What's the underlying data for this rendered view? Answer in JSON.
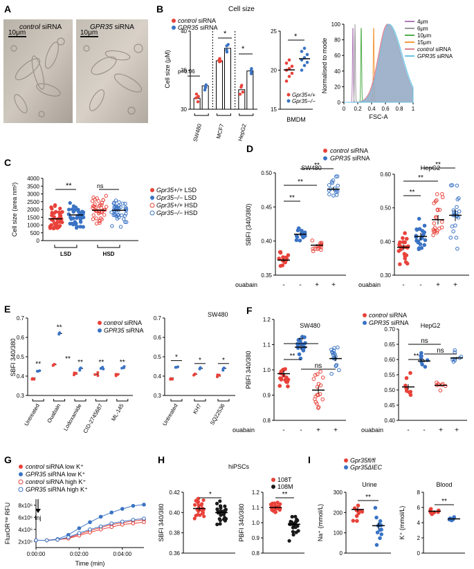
{
  "figure": {
    "panel_labels": [
      "A",
      "B",
      "C",
      "D",
      "E",
      "F",
      "G",
      "H",
      "I"
    ],
    "colors": {
      "red": "#e8423a",
      "blue": "#3a73c4",
      "pink": "#d98090",
      "cyan": "#6cc4e6",
      "purple": "#b07ab8",
      "green": "#4fae4a",
      "orange": "#f39a3c",
      "gray": "#999999",
      "black": "#1a1a1a"
    }
  },
  "A": {
    "image_labels": [
      {
        "prefix": "",
        "italic": "control",
        "suffix": " siRNA"
      },
      {
        "prefix": "",
        "italic": "GPR35",
        "suffix": " siRNA"
      }
    ],
    "scale_bars": [
      "10μm",
      "10μm"
    ]
  },
  "B": {
    "title": "Cell size",
    "legend": [
      {
        "italic": "control",
        "suffix": " siRNA",
        "color": "red"
      },
      {
        "italic": "GPR35",
        "suffix": " siRNA",
        "color": "blue"
      }
    ],
    "pval": "p=0.06",
    "sig": [
      "*",
      "*",
      "*"
    ],
    "bmdm_legend": [
      "Gpr35+/+",
      "Gpr35−/−"
    ],
    "flow_legend": [
      {
        "label": "4μm",
        "color": "purple"
      },
      {
        "label": "6μm",
        "color": "gray"
      },
      {
        "label": "10μm",
        "color": "green"
      },
      {
        "label": "15μm",
        "color": "orange"
      },
      {
        "italic": "control",
        "suffix": " siRNA",
        "color": "pink"
      },
      {
        "italic": "GPR35",
        "suffix": " siRNA",
        "color": "cyan"
      }
    ]
  },
  "C": {
    "sig": [
      "**",
      "ns"
    ],
    "legend": [
      {
        "gene": "Gpr35+/+",
        "diet": " LSD",
        "style": "red-filled"
      },
      {
        "gene": "Gpr35−/−",
        "diet": " LSD",
        "style": "blue-filled"
      },
      {
        "gene": "Gpr35+/+",
        "diet": " HSD",
        "style": "red-open"
      },
      {
        "gene": "Gpr35−/−",
        "diet": " HSD",
        "style": "blue-open"
      }
    ]
  },
  "D": {
    "legend": [
      {
        "italic": "control",
        "suffix": " siRNA"
      },
      {
        "italic": "GPR35",
        "suffix": " siRNA"
      }
    ],
    "row_label": "ouabain",
    "treatment_marks": [
      "-",
      "-",
      "+",
      "+"
    ],
    "sig": [
      "**",
      "**",
      "**"
    ]
  },
  "E": {
    "title": "SW480",
    "legend": [
      {
        "italic": "control",
        "suffix": " siRNA"
      },
      {
        "italic": "GPR35",
        "suffix": " siRNA"
      }
    ],
    "sig_left": [
      "**",
      "**",
      "**",
      "**",
      "**",
      "**"
    ],
    "sig_right": [
      "*",
      "*",
      "*"
    ]
  },
  "F": {
    "legend": [
      {
        "italic": "control",
        "suffix": " siRNA"
      },
      {
        "italic": "GPR35",
        "suffix": " siRNA"
      }
    ],
    "row_label": "ouabain",
    "treatment_marks": [
      "-",
      "-",
      "+",
      "+"
    ],
    "sig_left": [
      "**",
      "**",
      "ns"
    ],
    "sig_right": [
      "**",
      "ns",
      "ns"
    ]
  },
  "G": {
    "legend": [
      {
        "italic": "control",
        "suffix": " siRNA low K⁺"
      },
      {
        "italic": "GPR35",
        "suffix": " siRNA low K⁺"
      },
      {
        "italic": "control",
        "suffix": " siRNA high K⁺"
      },
      {
        "italic": "GPR35",
        "suffix": " siRNA high K⁺"
      }
    ],
    "inj_label": "Inj"
  },
  "H": {
    "title": "hiPSCs",
    "legend": [
      "108T",
      "108M"
    ],
    "sig": [
      "*",
      "**"
    ]
  },
  "I": {
    "legend": [
      "Gpr35fl/fl",
      "Gpr35ΔIEC"
    ],
    "sig": [
      "**",
      "**"
    ]
  },
  "chart_data": [
    {
      "id": "B1",
      "type": "bar",
      "title": "Cell size",
      "ylabel": "Cell size (μM)",
      "ylim": [
        30,
        40
      ],
      "yticks": [
        30,
        35,
        40
      ],
      "categories": [
        "SW480",
        "MCF7",
        "HepG2"
      ],
      "series": [
        {
          "name": "control siRNA",
          "values": [
            31.4,
            36.2,
            32.5
          ]
        },
        {
          "name": "GPR35 siRNA",
          "values": [
            33.0,
            37.8,
            34.9
          ]
        }
      ]
    },
    {
      "id": "B2",
      "type": "scatter",
      "xlabel": "BMDM",
      "ylim": [
        15,
        25
      ],
      "yticks": [
        15,
        20,
        25
      ],
      "series": [
        {
          "name": "Gpr35+/+",
          "values": [
            18.6,
            19.2,
            19.6,
            20.0,
            20.2,
            20.5,
            20.9,
            21.3
          ]
        },
        {
          "name": "Gpr35−/−",
          "values": [
            20.0,
            20.6,
            21.0,
            21.3,
            21.6,
            22.0,
            22.4,
            22.8
          ]
        }
      ],
      "sig": "*"
    },
    {
      "id": "B3",
      "type": "area",
      "xlabel": "FSC-A",
      "ylabel": "Normalised to mode",
      "xlim": [
        0,
        1.0
      ],
      "ylim": [
        0,
        100
      ],
      "xticks": [
        0,
        0.2,
        0.4,
        0.6,
        0.8,
        1.0
      ],
      "yticks": [
        0,
        20,
        40,
        60,
        80,
        100
      ],
      "series": [
        {
          "name": "4μm",
          "peak": 0.13
        },
        {
          "name": "6μm",
          "peak": 0.16
        },
        {
          "name": "10μm",
          "peak": 0.25
        },
        {
          "name": "15μm",
          "peak": 0.43
        },
        {
          "name": "control siRNA",
          "peak": 0.63
        },
        {
          "name": "GPR35 siRNA",
          "peak": 0.65
        }
      ]
    },
    {
      "id": "C",
      "type": "scatter",
      "ylabel": "Cell size (area nm²)",
      "ylim": [
        0,
        4000
      ],
      "yticks": [
        0,
        500,
        1000,
        1500,
        2000,
        2500,
        3000,
        3500,
        4000
      ],
      "group_labels": [
        "LSD",
        "HSD"
      ],
      "means": [
        1400,
        1650,
        1950,
        1950
      ],
      "series": [
        "Gpr35+/+ LSD",
        "Gpr35−/− LSD",
        "Gpr35+/+ HSD",
        "Gpr35−/− HSD"
      ]
    },
    {
      "id": "D1",
      "type": "scatter",
      "title": "SW480",
      "ylabel": "SBFI (340/380)",
      "ylim": [
        0.35,
        0.5
      ],
      "yticks": [
        0.35,
        0.4,
        0.45,
        0.5
      ],
      "means": [
        0.372,
        0.41,
        0.394,
        0.476
      ]
    },
    {
      "id": "D2",
      "type": "scatter",
      "title": "HepG2",
      "ylim": [
        0.3,
        0.6
      ],
      "yticks": [
        0.3,
        0.4,
        0.5,
        0.6
      ],
      "means": [
        0.383,
        0.415,
        0.465,
        0.478
      ]
    },
    {
      "id": "E1",
      "type": "bar",
      "ylabel": "SBFI 340/380",
      "ylim": [
        0.3,
        0.7
      ],
      "yticks": [
        0.3,
        0.4,
        0.5,
        0.6,
        0.7
      ],
      "categories": [
        "Untreated",
        "Ouabain",
        "Lodoxamide",
        "CID-2745687",
        "ML-145"
      ],
      "series": [
        {
          "name": "control siRNA",
          "values": [
            0.39,
            0.46,
            0.41,
            0.41,
            0.41
          ]
        },
        {
          "name": "GPR35 siRNA",
          "values": [
            0.43,
            0.62,
            0.44,
            0.44,
            0.44
          ]
        }
      ]
    },
    {
      "id": "E2",
      "type": "bar",
      "ylim": [
        0.3,
        0.7
      ],
      "yticks": [
        0.3,
        0.4,
        0.5,
        0.6,
        0.7
      ],
      "categories": [
        "Untreated",
        "KH7",
        "SQ22536"
      ],
      "series": [
        {
          "name": "control siRNA",
          "values": [
            0.39,
            0.41,
            0.4
          ]
        },
        {
          "name": "GPR35 siRNA",
          "values": [
            0.45,
            0.44,
            0.44
          ]
        }
      ]
    },
    {
      "id": "F1",
      "type": "scatter",
      "title": "SW480",
      "ylabel": "PBFI 340/380",
      "ylim": [
        0.8,
        1.2
      ],
      "yticks": [
        0.8,
        0.9,
        1.0,
        1.1,
        1.2
      ],
      "means": [
        0.985,
        1.09,
        0.92,
        1.045
      ]
    },
    {
      "id": "F2",
      "type": "scatter",
      "title": "HepG2",
      "ylim": [
        0.4,
        0.7
      ],
      "yticks": [
        0.4,
        0.45,
        0.5,
        0.55,
        0.6,
        0.65,
        0.7
      ],
      "means": [
        0.51,
        0.595,
        0.515,
        0.605
      ]
    },
    {
      "id": "G",
      "type": "line",
      "xlabel": "Time (min)",
      "ylabel": "FluxOR™ RFU",
      "xlim": [
        0,
        5
      ],
      "ylim": [
        1000000,
        9000000
      ],
      "xticks": [
        "0:00:00",
        "0:02:00",
        "0:04:00"
      ],
      "yticks": [
        "2x10⁶",
        "4x10⁶",
        "6x10⁶",
        "8x10⁶"
      ],
      "x": [
        0,
        0.5,
        1,
        1.5,
        2,
        2.5,
        3,
        3.5,
        4,
        4.5,
        5
      ],
      "series": [
        {
          "name": "control siRNA low K+",
          "values": [
            2.2,
            2.2,
            2.3,
            2.6,
            3.2,
            3.8,
            4.3,
            4.8,
            5.1,
            5.4,
            5.6
          ]
        },
        {
          "name": "GPR35 siRNA low K+",
          "values": [
            2.2,
            2.2,
            2.4,
            3.1,
            4.2,
            5.2,
            6.1,
            6.8,
            7.4,
            7.9,
            8.1
          ]
        },
        {
          "name": "control siRNA high K+",
          "values": [
            2.2,
            2.2,
            2.3,
            2.5,
            3.0,
            3.5,
            4.0,
            4.4,
            4.8,
            5.0,
            5.2
          ]
        },
        {
          "name": "GPR35 siRNA high K+",
          "values": [
            2.2,
            2.2,
            2.3,
            2.7,
            3.4,
            4.0,
            4.5,
            5.0,
            5.3,
            5.6,
            5.8
          ]
        }
      ]
    },
    {
      "id": "H1",
      "type": "scatter",
      "ylabel": "SBFI 340/380",
      "ylim": [
        0.36,
        0.42
      ],
      "yticks": [
        0.36,
        0.38,
        0.4,
        0.42
      ],
      "means": [
        0.404,
        0.4
      ]
    },
    {
      "id": "H2",
      "type": "scatter",
      "ylabel": "PBFI 340/380",
      "ylim": [
        0.8,
        1.2
      ],
      "yticks": [
        0.8,
        0.9,
        1.0,
        1.1,
        1.2
      ],
      "means": [
        1.1,
        0.99
      ]
    },
    {
      "id": "I1",
      "type": "scatter",
      "title": "Urine",
      "ylabel": "Na⁺ (mmol/L)",
      "ylim": [
        0,
        300
      ],
      "yticks": [
        0,
        100,
        200,
        300
      ],
      "means": [
        215,
        135
      ]
    },
    {
      "id": "I2",
      "type": "scatter",
      "title": "Blood",
      "ylabel": "K⁺ (mmol/L)",
      "ylim": [
        0,
        8
      ],
      "yticks": [
        0,
        2,
        4,
        6,
        8
      ],
      "means": [
        5.5,
        4.5
      ]
    }
  ]
}
